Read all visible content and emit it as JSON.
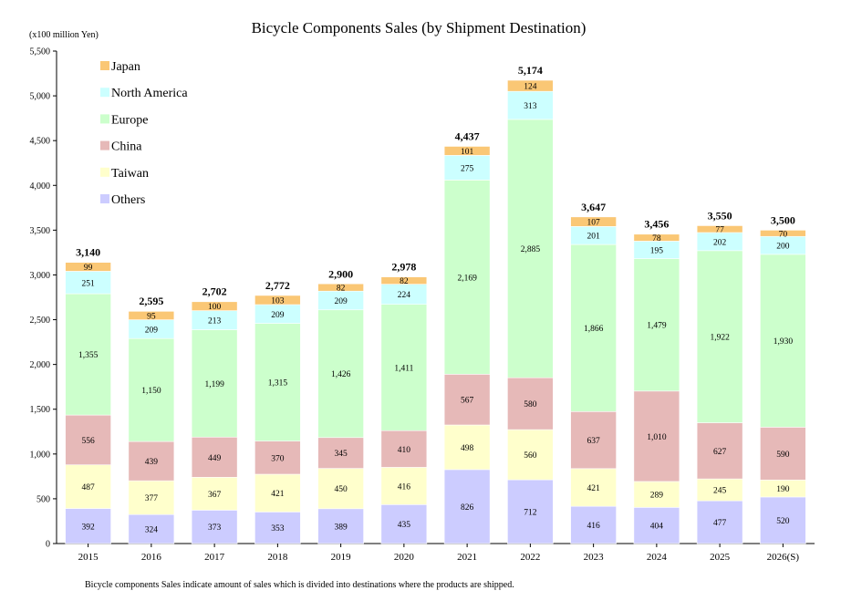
{
  "chart_data": {
    "type": "bar",
    "stacked": true,
    "title": "Bicycle Components Sales (by Shipment Destination)",
    "unit_label": "(x100 million Yen)",
    "footnote": "Bicycle components Sales indicate amount of sales which is divided into destinations where the products are shipped.",
    "ylim": [
      0,
      5500
    ],
    "yticks": [
      0,
      500,
      1000,
      1500,
      2000,
      2500,
      3000,
      3500,
      4000,
      4500,
      5000,
      5500
    ],
    "ytick_labels": [
      "0",
      "500",
      "1,000",
      "1,500",
      "2,000",
      "2,500",
      "3,000",
      "3,500",
      "4,000",
      "4,500",
      "5,000",
      "5,500"
    ],
    "categories": [
      "2015",
      "2016",
      "2017",
      "2018",
      "2019",
      "2020",
      "2021",
      "2022",
      "2023",
      "2024",
      "2025",
      "2026(S)"
    ],
    "totals": [
      3140,
      2595,
      2702,
      2772,
      2900,
      2978,
      4437,
      5174,
      3647,
      3456,
      3550,
      3500
    ],
    "total_labels": [
      "3,140",
      "2,595",
      "2,702",
      "2,772",
      "2,900",
      "2,978",
      "4,437",
      "5,174",
      "3,647",
      "3,456",
      "3,550",
      "3,500"
    ],
    "series": [
      {
        "name": "Others",
        "color": "#ccccff",
        "values": [
          392,
          324,
          373,
          353,
          389,
          435,
          826,
          712,
          416,
          404,
          477,
          520
        ]
      },
      {
        "name": "Taiwan",
        "color": "#ffffcc",
        "values": [
          487,
          377,
          367,
          421,
          450,
          416,
          498,
          560,
          421,
          289,
          245,
          190
        ]
      },
      {
        "name": "China",
        "color": "#e6b9b8",
        "values": [
          556,
          439,
          449,
          370,
          345,
          410,
          567,
          580,
          637,
          1010,
          627,
          590
        ]
      },
      {
        "name": "Europe",
        "color": "#ccffcc",
        "values": [
          1355,
          1150,
          1199,
          1315,
          1426,
          1411,
          2169,
          2885,
          1866,
          1479,
          1922,
          1930
        ]
      },
      {
        "name": "North America",
        "color": "#ccffff",
        "values": [
          251,
          209,
          213,
          209,
          209,
          224,
          275,
          313,
          201,
          195,
          202,
          200
        ]
      },
      {
        "name": "Japan",
        "color": "#fac775",
        "values": [
          99,
          95,
          100,
          103,
          82,
          82,
          101,
          124,
          107,
          78,
          77,
          70
        ]
      }
    ],
    "legend_order": [
      "Japan",
      "North America",
      "Europe",
      "China",
      "Taiwan",
      "Others"
    ],
    "legend_position": "top-left"
  }
}
